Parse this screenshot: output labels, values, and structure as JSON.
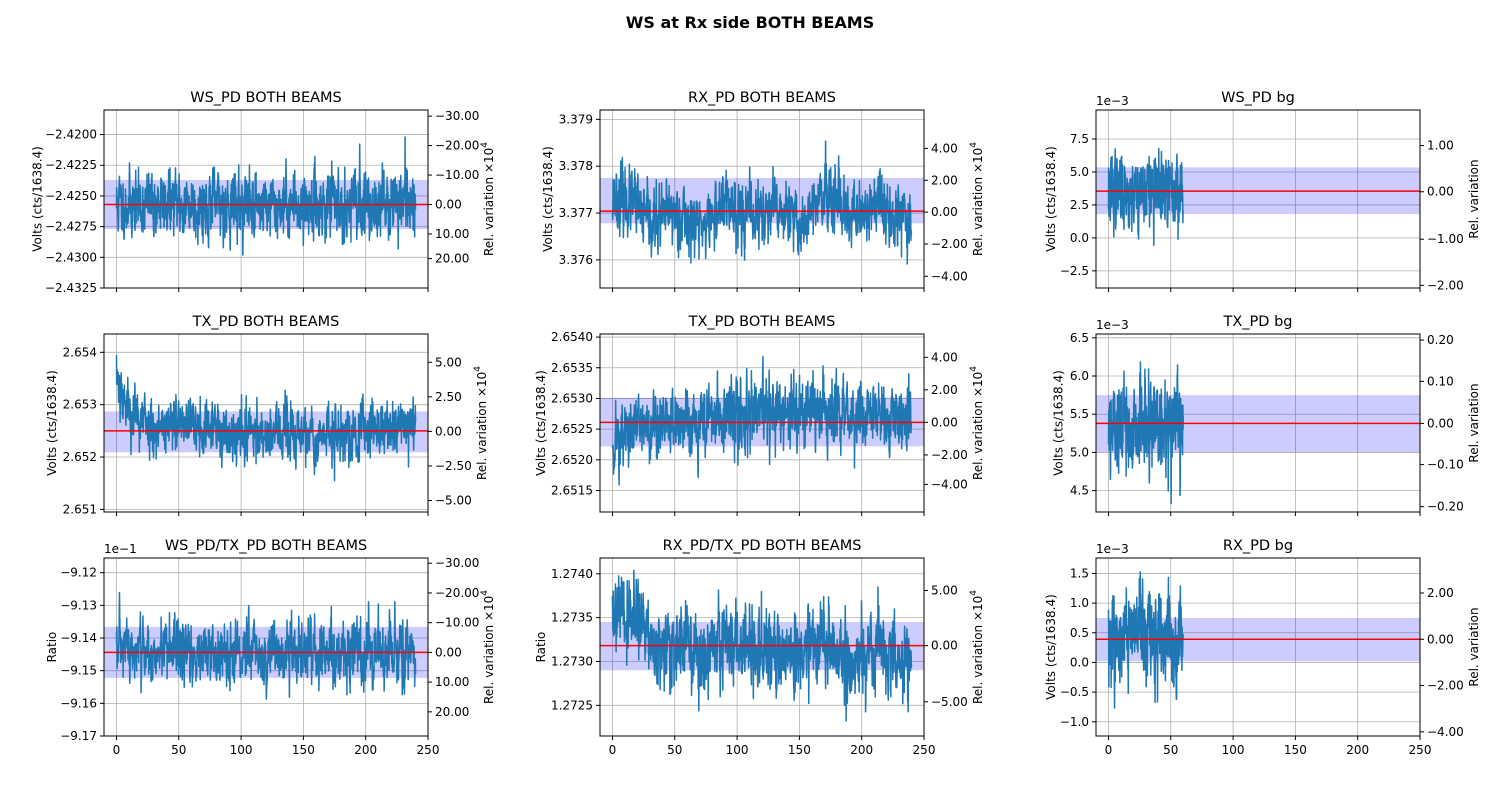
{
  "suptitle": "WS at Rx side BOTH BEAMS",
  "colors": {
    "trace": "#1f77b4",
    "mean_line": "#ff0000",
    "band": "#0000ff",
    "grid": "#b0b0b0"
  },
  "chart_data": [
    {
      "type": "line",
      "title": "WS_PD BOTH BEAMS",
      "ylabel": "Volts (cts/1638.4)",
      "y2label": "Rel. variation ×10^4",
      "xlim": [
        -10,
        250
      ],
      "ylim": [
        -2.4325,
        -2.418
      ],
      "yticks": [
        -2.4325,
        -2.43,
        -2.4275,
        -2.425,
        -2.4225,
        -2.42
      ],
      "ytick_labels": [
        "−2.4325",
        "−2.4300",
        "−2.4275",
        "−2.4250",
        "−2.4225",
        "−2.4200"
      ],
      "y2ticks": [
        -2.4301,
        -2.4281,
        -2.4257,
        -2.4233,
        -2.4209,
        -2.4185
      ],
      "y2tick_labels": [
        "20.00",
        "10.00",
        "0.00",
        "−10.00",
        "−20.00",
        "−30.00"
      ],
      "x_start": 0,
      "x_end": 240,
      "mean": -2.4257,
      "band": [
        -2.4277,
        -2.4237
      ],
      "noise": 0.0013,
      "min": -2.4318,
      "max": -2.4202,
      "seed": 11,
      "trend": [],
      "xticks": [
        0,
        50,
        100,
        150,
        200,
        250
      ],
      "show_xticklabels": false,
      "grid": true,
      "legend": "none"
    },
    {
      "type": "line",
      "title": "RX_PD BOTH BEAMS",
      "ylabel": "Volts (cts/1638.4)",
      "y2label": "Rel. variation ×10^4",
      "xlim": [
        -10,
        250
      ],
      "ylim": [
        3.3754,
        3.3792
      ],
      "yticks": [
        3.376,
        3.377,
        3.378,
        3.379
      ],
      "ytick_labels": [
        "3.376",
        "3.377",
        "3.378",
        "3.379"
      ],
      "y2ticks": [
        3.37565,
        3.37634,
        3.37702,
        3.3777,
        3.37838
      ],
      "y2tick_labels": [
        "−4.00",
        "−2.00",
        "0.00",
        "2.00",
        "4.00"
      ],
      "x_start": 0,
      "x_end": 240,
      "mean": 3.37704,
      "band": [
        3.37678,
        3.37775
      ],
      "noise": 0.00034,
      "min": 3.37555,
      "max": 3.3789,
      "seed": 23,
      "trend": [
        [
          0,
          0.0003
        ],
        [
          15,
          0.0002
        ],
        [
          30,
          -0.0003
        ],
        [
          50,
          0
        ],
        [
          60,
          -0.0002
        ],
        [
          75,
          -0.0003
        ],
        [
          90,
          0.0002
        ],
        [
          110,
          -0.0001
        ],
        [
          135,
          0
        ],
        [
          150,
          -0.0003
        ],
        [
          170,
          0.0003
        ],
        [
          190,
          -0.0002
        ],
        [
          210,
          0.0001
        ],
        [
          240,
          -0.0001
        ]
      ],
      "xticks": [
        0,
        50,
        100,
        150,
        200,
        250
      ],
      "show_xticklabels": false,
      "grid": true,
      "legend": "none"
    },
    {
      "type": "line",
      "title": "WS_PD bg",
      "ylabel": "Volts (cts/1638.4)",
      "y2label": "Rel. variation",
      "scale_label": "1e−3",
      "xlim": [
        -10,
        250
      ],
      "ylim": [
        -3.8,
        9.7
      ],
      "yticks": [
        -2.5,
        0,
        2.5,
        5,
        7.5
      ],
      "ytick_labels": [
        "−2.5",
        "0.0",
        "2.5",
        "5.0",
        "7.5"
      ],
      "y2ticks": [
        -3.6,
        -0.1,
        3.5,
        7.0
      ],
      "y2tick_labels": [
        "−2.00",
        "−1.00",
        "0.00",
        "1.00"
      ],
      "x_start": 0,
      "x_end": 60,
      "mean": 3.55,
      "band": [
        1.8,
        5.35
      ],
      "noise": 1.4,
      "min": -3.2,
      "max": 9.0,
      "seed": 37,
      "trend": [],
      "xticks": [
        0,
        50,
        100,
        150,
        200,
        250
      ],
      "show_xticklabels": false,
      "grid": true,
      "legend": "none"
    },
    {
      "type": "line",
      "title": "TX_PD BOTH BEAMS",
      "ylabel": "Volts (cts/1638.4)",
      "y2label": "Rel. variation ×10^4",
      "xlim": [
        -10,
        250
      ],
      "ylim": [
        2.65095,
        2.65435
      ],
      "yticks": [
        2.651,
        2.652,
        2.653,
        2.654
      ],
      "ytick_labels": [
        "2.651",
        "2.652",
        "2.653",
        "2.654"
      ],
      "y2ticks": [
        2.65117,
        2.65183,
        2.65249,
        2.65315,
        2.65381
      ],
      "y2tick_labels": [
        "−5.00",
        "−2.50",
        "0.00",
        "2.50",
        "5.00"
      ],
      "x_start": 0,
      "x_end": 240,
      "mean": 2.6525,
      "band": [
        2.65209,
        2.65287
      ],
      "noise": 0.00027,
      "min": 2.6512,
      "max": 2.65425,
      "seed": 53,
      "trend": [
        [
          0,
          0.0011
        ],
        [
          5,
          0.0007
        ],
        [
          12,
          0.0003
        ],
        [
          30,
          0.00012
        ],
        [
          90,
          0
        ],
        [
          170,
          -0.0001
        ],
        [
          200,
          5e-05
        ],
        [
          240,
          0.0001
        ]
      ],
      "xticks": [
        0,
        50,
        100,
        150,
        200,
        250
      ],
      "show_xticklabels": false,
      "grid": true,
      "legend": "none"
    },
    {
      "type": "line",
      "title": "TX_PD BOTH BEAMS",
      "ylabel": "Volts (cts/1638.4)",
      "y2label": "Rel. variation ×10^4",
      "xlim": [
        -10,
        250
      ],
      "ylim": [
        2.65115,
        2.65405
      ],
      "yticks": [
        2.6515,
        2.652,
        2.6525,
        2.653,
        2.6535,
        2.654
      ],
      "ytick_labels": [
        "2.6515",
        "2.6520",
        "2.6525",
        "2.6530",
        "2.6535",
        "2.6540"
      ],
      "y2ticks": [
        2.6516,
        2.65208,
        2.65261,
        2.65314,
        2.65367
      ],
      "y2tick_labels": [
        "−4.00",
        "−2.00",
        "0.00",
        "2.00",
        "4.00"
      ],
      "x_start": 0,
      "x_end": 240,
      "mean": 2.65261,
      "band": [
        2.65222,
        2.65301
      ],
      "noise": 0.00028,
      "min": 2.6513,
      "max": 2.6539,
      "seed": 71,
      "trend": [
        [
          0,
          -0.0003
        ],
        [
          20,
          -0.0001
        ],
        [
          50,
          0
        ],
        [
          100,
          0.0001
        ],
        [
          160,
          0.00015
        ],
        [
          240,
          0.0001
        ]
      ],
      "xticks": [
        0,
        50,
        100,
        150,
        200,
        250
      ],
      "show_xticklabels": false,
      "grid": true,
      "legend": "none"
    },
    {
      "type": "line",
      "title": "TX_PD bg",
      "ylabel": "Volts (cts/1638.4)",
      "y2label": "Rel. variation",
      "scale_label": "1e−3",
      "xlim": [
        -10,
        250
      ],
      "ylim": [
        4.22,
        6.55
      ],
      "yticks": [
        4.5,
        5.0,
        5.5,
        6.0,
        6.5
      ],
      "ytick_labels": [
        "4.5",
        "5.0",
        "5.5",
        "6.0",
        "6.5"
      ],
      "y2ticks": [
        4.29,
        4.84,
        5.38,
        5.93,
        6.47
      ],
      "y2tick_labels": [
        "−0.20",
        "−0.10",
        "0.00",
        "0.10",
        "0.20"
      ],
      "x_start": 0,
      "x_end": 60,
      "mean": 5.38,
      "band": [
        5.0,
        5.75
      ],
      "noise": 0.32,
      "min": 4.33,
      "max": 6.42,
      "seed": 89,
      "trend": [],
      "xticks": [
        0,
        50,
        100,
        150,
        200,
        250
      ],
      "show_xticklabels": false,
      "grid": true,
      "legend": "none"
    },
    {
      "type": "line",
      "title": "WS_PD/TX_PD BOTH BEAMS",
      "ylabel": "Ratio",
      "y2label": "Rel. variation ×10^4",
      "scale_label": "1e−1",
      "xlim": [
        -10,
        250
      ],
      "ylim": [
        -9.17,
        -9.1155
      ],
      "yticks": [
        -9.17,
        -9.16,
        -9.15,
        -9.14,
        -9.13,
        -9.12
      ],
      "ytick_labels": [
        "−9.17",
        "−9.16",
        "−9.15",
        "−9.14",
        "−9.13",
        "−9.12"
      ],
      "y2ticks": [
        -9.1626,
        -9.1535,
        -9.1444,
        -9.1353,
        -9.1262,
        -9.1171
      ],
      "y2tick_labels": [
        "20.00",
        "10.00",
        "0.00",
        "−10.00",
        "−20.00",
        "−30.00"
      ],
      "x_start": 0,
      "x_end": 240,
      "mean": -9.1444,
      "band": [
        -9.1522,
        -9.1366
      ],
      "noise": 0.0048,
      "min": -9.167,
      "max": -9.1185,
      "seed": 97,
      "trend": [],
      "xticks": [
        0,
        50,
        100,
        150,
        200,
        250
      ],
      "show_xticklabels": true,
      "grid": true,
      "legend": "none"
    },
    {
      "type": "line",
      "title": "RX_PD/TX_PD BOTH BEAMS",
      "ylabel": "Ratio",
      "y2label": "Rel. variation ×10^4",
      "xlim": [
        -10,
        250
      ],
      "ylim": [
        1.27215,
        1.27418
      ],
      "yticks": [
        1.2725,
        1.273,
        1.2735,
        1.274
      ],
      "ytick_labels": [
        "1.2725",
        "1.2730",
        "1.2735",
        "1.2740"
      ],
      "y2ticks": [
        1.27254,
        1.27318,
        1.27381
      ],
      "y2tick_labels": [
        "−5.00",
        "0.00",
        "5.00"
      ],
      "x_start": 0,
      "x_end": 240,
      "mean": 1.27318,
      "band": [
        1.2729,
        1.27345
      ],
      "noise": 0.00022,
      "min": 1.2722,
      "max": 1.2741,
      "seed": 131,
      "trend": [
        [
          0,
          0.0004
        ],
        [
          10,
          0.00035
        ],
        [
          25,
          0.0003
        ],
        [
          35,
          -0.0001
        ],
        [
          60,
          0
        ],
        [
          75,
          -0.0002
        ],
        [
          90,
          5e-05
        ],
        [
          110,
          0
        ],
        [
          140,
          -0.0001
        ],
        [
          165,
          5e-05
        ],
        [
          190,
          -0.0002
        ],
        [
          215,
          0
        ],
        [
          240,
          -0.0002
        ]
      ],
      "xticks": [
        0,
        50,
        100,
        150,
        200,
        250
      ],
      "show_xticklabels": true,
      "grid": true,
      "legend": "none"
    },
    {
      "type": "line",
      "title": "RX_PD bg",
      "ylabel": "Volts (cts/1638.4)",
      "y2label": "Rel. variation",
      "scale_label": "1e−3",
      "xlim": [
        -10,
        250
      ],
      "ylim": [
        -1.24,
        1.76
      ],
      "yticks": [
        -1.0,
        -0.5,
        0.0,
        0.5,
        1.0,
        1.5
      ],
      "ytick_labels": [
        "−1.0",
        "−0.5",
        "0.0",
        "0.5",
        "1.0",
        "1.5"
      ],
      "y2ticks": [
        -1.17,
        -0.39,
        0.39,
        1.17
      ],
      "y2tick_labels": [
        "−4.00",
        "−2.00",
        "0.00",
        "2.00"
      ],
      "x_start": 0,
      "x_end": 60,
      "mean": 0.39,
      "band": [
        0.02,
        0.75
      ],
      "noise": 0.36,
      "min": -1.1,
      "max": 1.62,
      "seed": 151,
      "trend": [],
      "xticks": [
        0,
        50,
        100,
        150,
        200,
        250
      ],
      "show_xticklabels": true,
      "grid": true,
      "legend": "none"
    }
  ]
}
